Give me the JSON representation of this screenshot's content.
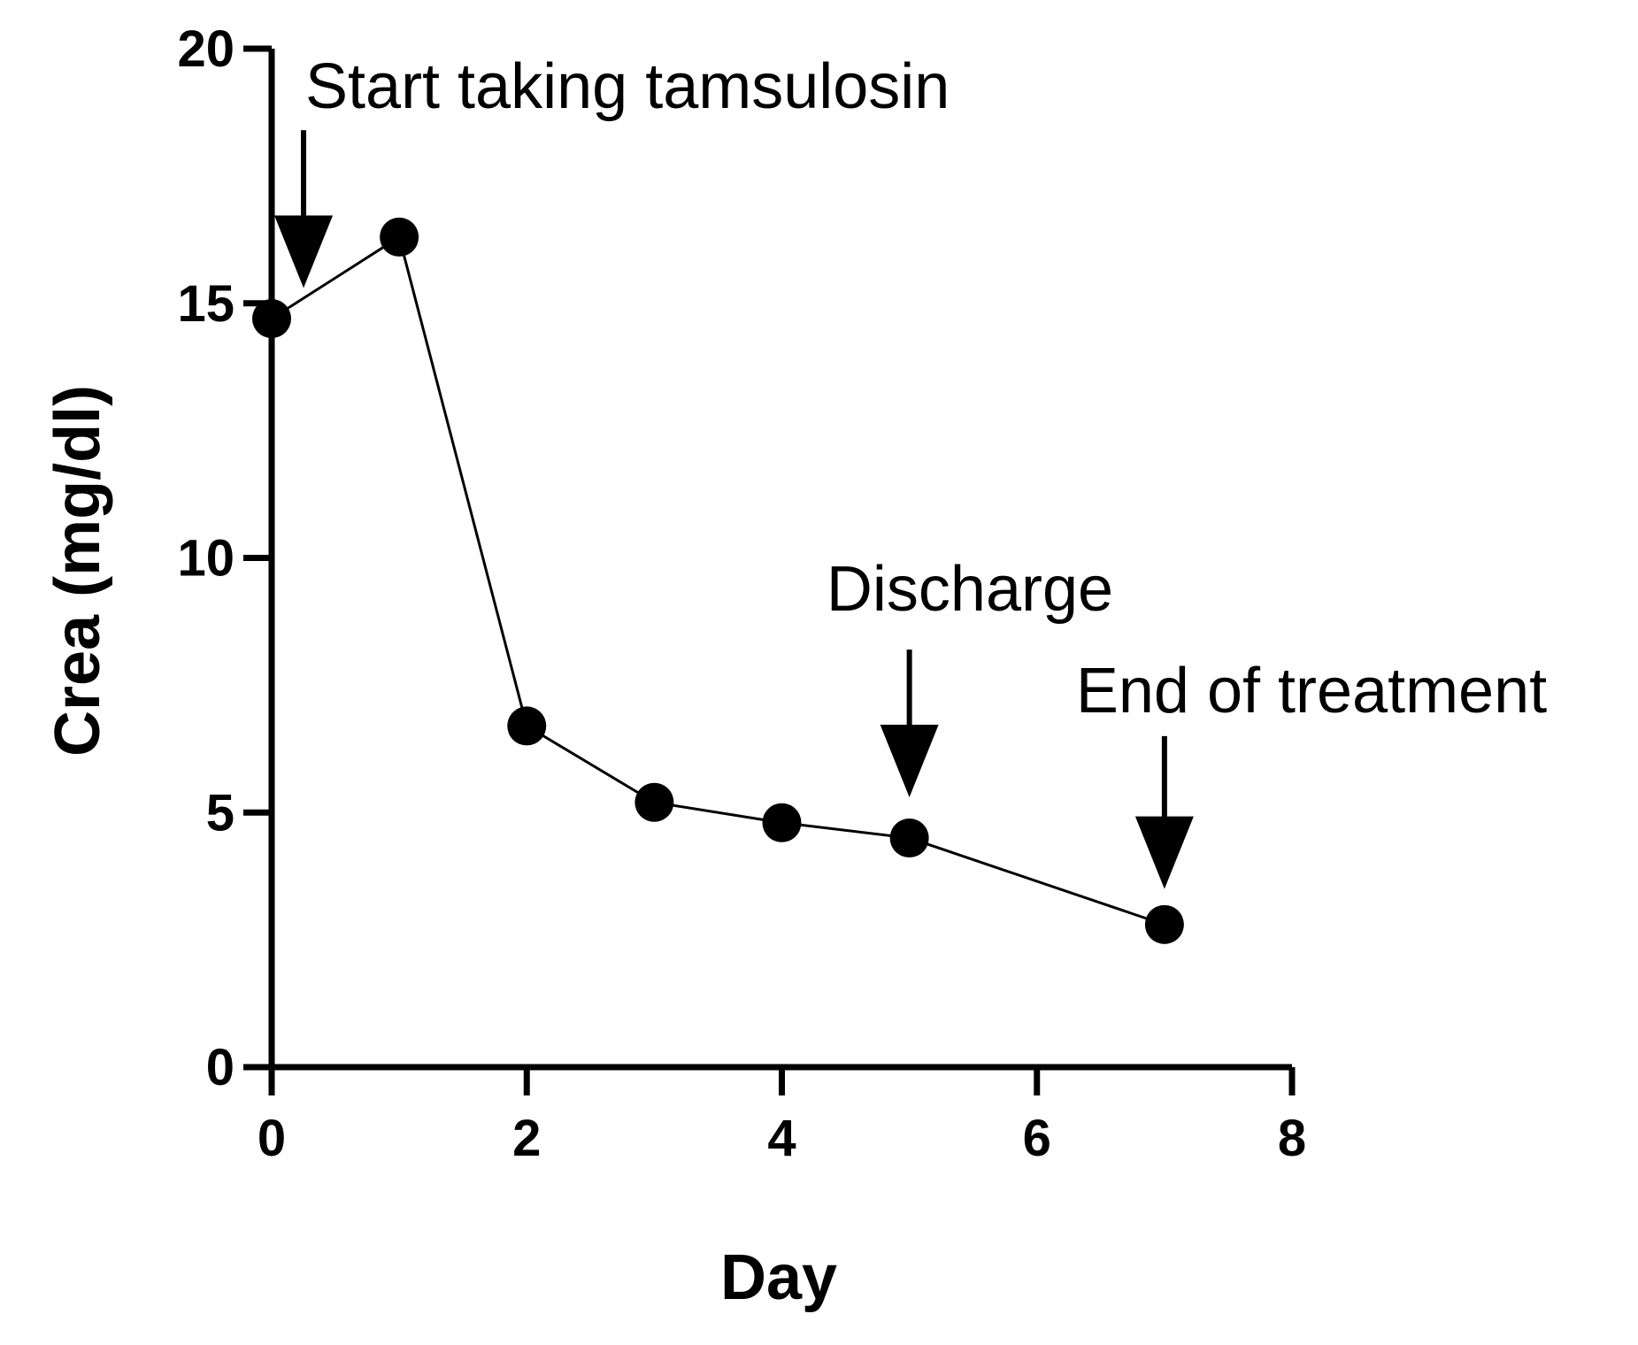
{
  "chart_data": {
    "type": "line",
    "title": "",
    "xlabel": "Day",
    "ylabel": "Crea (mg/dl)",
    "xlim": [
      0,
      8
    ],
    "ylim": [
      0,
      20
    ],
    "xticks": [
      0,
      2,
      4,
      6,
      8
    ],
    "yticks": [
      0,
      5,
      10,
      15,
      20
    ],
    "xtick_labels": [
      "0",
      "2",
      "4",
      "6",
      "8"
    ],
    "ytick_labels": [
      "0",
      "5",
      "10",
      "15",
      "20"
    ],
    "grid": false,
    "series": [
      {
        "name": "Crea",
        "x": [
          0,
          1,
          2,
          3,
          4,
          5,
          7
        ],
        "values": [
          14.7,
          16.3,
          6.7,
          5.2,
          4.8,
          4.5,
          2.8
        ]
      }
    ],
    "annotations": [
      {
        "text": "Start taking tamsulosin",
        "x": 0.25,
        "arrow_from_y": 18.4,
        "arrow_to_y": 15.3
      },
      {
        "text": "Discharge",
        "x": 5,
        "arrow_from_y": 8.2,
        "arrow_to_y": 5.3
      },
      {
        "text": "End of treatment",
        "x": 7,
        "arrow_from_y": 6.5,
        "arrow_to_y": 3.5
      }
    ]
  }
}
